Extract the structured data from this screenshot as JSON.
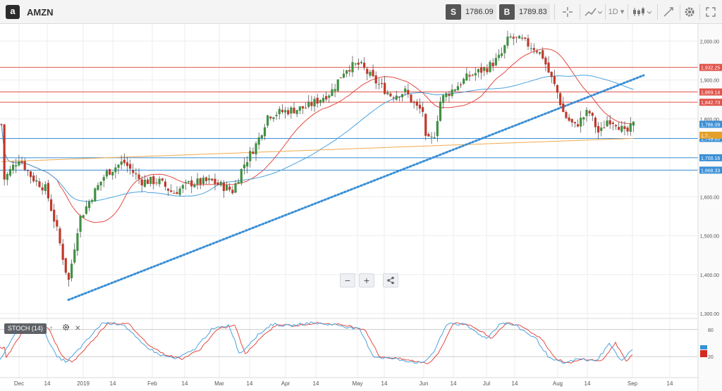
{
  "toolbar": {
    "logo_letter": "a",
    "symbol": "AMZN",
    "sell_label": "S",
    "sell_price": "1786.09",
    "buy_label": "B",
    "buy_price": "1789.83",
    "timeframe": "1D",
    "icons": [
      "crosshair-icon",
      "chart-type-icon",
      "timeframe-dropdown",
      "candles-icon",
      "draw-icon",
      "settings-icon",
      "expand-icon"
    ]
  },
  "indicator": {
    "label": "STOCH (14)"
  },
  "chart_data": {
    "type": "candlestick",
    "ylim": [
      1300,
      2060
    ],
    "price_ticks": [
      "2,000.00",
      "1,900.00",
      "1,800.00",
      "1,700.00",
      "1,600.00",
      "1,500.00",
      "1,400.00",
      "1,300.00"
    ],
    "x_ticks": [
      "Dec",
      "14",
      "2019",
      "14",
      "Feb",
      "14",
      "Mar",
      "14",
      "Apr",
      "14",
      "May",
      "14",
      "Jun",
      "14",
      "Jul",
      "14",
      "Aug",
      "14",
      "Sep",
      "14"
    ],
    "horizontal_lines": [
      {
        "label": "1,932.25",
        "value": 1932.25,
        "color": "#e0544b"
      },
      {
        "label": "1,869.14",
        "value": 1869.14,
        "color": "#e0544b"
      },
      {
        "label": "1,842.73",
        "value": 1842.73,
        "color": "#e0544b"
      },
      {
        "label": "1,749.80",
        "value": 1749.8,
        "color": "#3a8fd6"
      },
      {
        "label": "1,700.16",
        "value": 1700.16,
        "color": "#3a8fd6"
      },
      {
        "label": "1,668.33",
        "value": 1668.33,
        "color": "#3a8fd6"
      }
    ],
    "price_tags": [
      {
        "label": "1,786.09",
        "value": 1786.09,
        "color": "#3a8fd6"
      },
      {
        "label": "1,7.._",
        "value": 1758,
        "color": "#e3a02a"
      }
    ],
    "moving_averages": [
      "red",
      "blue",
      "orange"
    ],
    "stoch_levels": [
      "80",
      "20"
    ],
    "colors": {
      "up": "#3f9142",
      "down": "#c1392b",
      "grid": "#eeeeee",
      "trendline": "#3a8fd6"
    }
  }
}
